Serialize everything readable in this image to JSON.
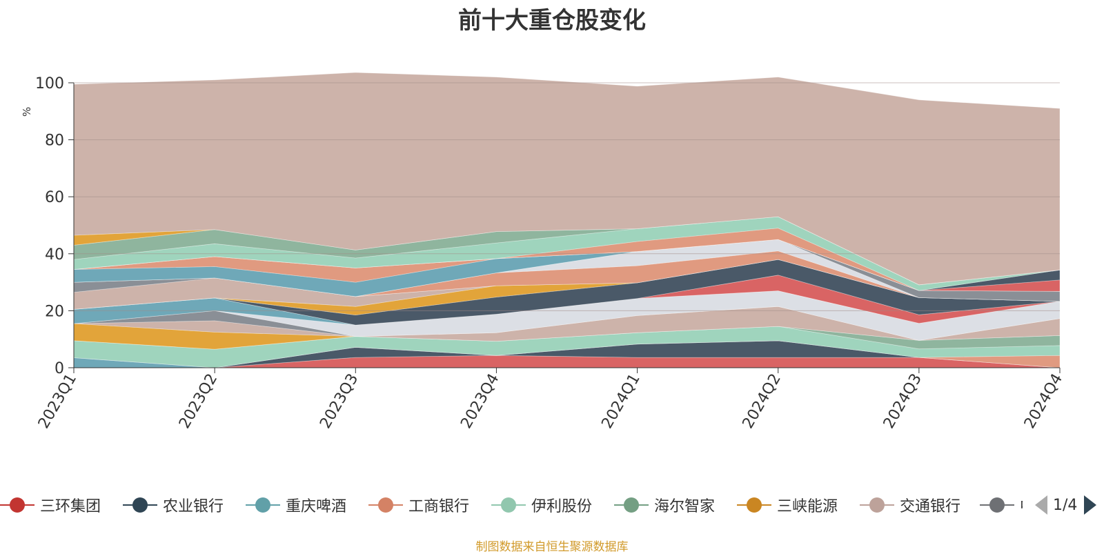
{
  "chart_data": {
    "type": "area",
    "title": "前十大重仓股变化",
    "ylabel": "%",
    "xlabel": "",
    "ylim": [
      0,
      100
    ],
    "yticks": [
      0,
      20,
      40,
      60,
      80,
      100
    ],
    "categories": [
      "2023Q1",
      "2023Q2",
      "2023Q3",
      "2023Q4",
      "2024Q1",
      "2024Q2",
      "2024Q3",
      "2024Q4"
    ],
    "stacked": true,
    "grid": true,
    "series": [
      {
        "name": "三环集团",
        "color": "#d96464",
        "values": [
          0,
          0,
          3.6,
          4.3,
          3.6,
          3.6,
          3.6,
          0
        ]
      },
      {
        "name": "农业银行",
        "color": "#4a5968",
        "values": [
          0,
          0,
          3.6,
          0,
          4.7,
          5.9,
          0,
          0
        ]
      },
      {
        "name": "重庆啤酒",
        "color": "#6fa8b8",
        "values": [
          3.5,
          0,
          0,
          0,
          0,
          0,
          0,
          0
        ]
      },
      {
        "name": "工商银行",
        "color": "#e09a80",
        "values": [
          0,
          0,
          0,
          0,
          0,
          0,
          0,
          4.3
        ]
      },
      {
        "name": "伊利股份",
        "color": "#9fd4bd",
        "values": [
          6,
          6.5,
          3.8,
          5,
          4,
          5,
          3,
          3.5
        ]
      },
      {
        "name": "海尔智家",
        "color": "#8fb59e",
        "values": [
          0,
          0,
          0,
          0,
          0,
          0,
          3,
          3.5
        ]
      },
      {
        "name": "三峡能源",
        "color": "#e2a43a",
        "values": [
          6,
          6,
          0,
          0,
          0,
          0,
          0,
          0
        ]
      },
      {
        "name": "交通银行",
        "color": "#cdb3aa",
        "values": [
          0,
          4,
          0,
          3,
          6,
          7,
          0,
          6
        ]
      },
      {
        "name": "",
        "color": "#8a8f96",
        "values": [
          0,
          3.5,
          0,
          0,
          0,
          0,
          0,
          0
        ]
      },
      {
        "name": "",
        "color": "#dcdfe5",
        "values": [
          0,
          0,
          4,
          6.5,
          6,
          5.5,
          6,
          6
        ]
      },
      {
        "name": "",
        "color": "#6fa8b8",
        "values": [
          5,
          4.5,
          0,
          0,
          0,
          0,
          0,
          0
        ]
      },
      {
        "name": "",
        "color": "#d96464",
        "values": [
          0,
          0,
          0,
          0,
          0,
          5.5,
          3,
          0
        ]
      },
      {
        "name": "",
        "color": "#4a5968",
        "values": [
          0,
          0,
          3.5,
          6,
          5.5,
          5.5,
          6,
          0
        ]
      },
      {
        "name": "",
        "color": "#e2a43a",
        "values": [
          0,
          0,
          3,
          4,
          0,
          0,
          0,
          0
        ]
      },
      {
        "name": "",
        "color": "#cdb3aa",
        "values": [
          6,
          7,
          3.5,
          0,
          0,
          0,
          0,
          0
        ]
      },
      {
        "name": "",
        "color": "#8a8f96",
        "values": [
          3.5,
          0,
          0,
          0,
          0,
          0,
          0,
          0
        ]
      },
      {
        "name": "",
        "color": "#e09a80",
        "values": [
          0,
          0,
          0,
          4.5,
          6,
          3,
          0,
          0
        ]
      },
      {
        "name": "",
        "color": "#dcdfe5",
        "values": [
          0,
          0,
          0,
          0,
          5,
          4,
          0,
          0
        ]
      },
      {
        "name": "",
        "color": "#8a8f96",
        "values": [
          0,
          0,
          0,
          0,
          0,
          0,
          2.5,
          3.5
        ]
      },
      {
        "name": "",
        "color": "#6fa8b8",
        "values": [
          4.5,
          4,
          5,
          5,
          0,
          0,
          0,
          0
        ]
      },
      {
        "name": "",
        "color": "#e09a80",
        "values": [
          0,
          3.5,
          5,
          0,
          0,
          0,
          0,
          0
        ]
      },
      {
        "name": "",
        "color": "#d96464",
        "values": [
          0,
          0,
          0,
          0,
          0,
          0,
          0,
          4
        ]
      },
      {
        "name": "",
        "color": "#4a5968",
        "values": [
          0,
          0,
          0,
          0,
          0,
          0,
          0,
          3.5
        ]
      },
      {
        "name": "",
        "color": "#e09a80",
        "values": [
          0,
          0,
          0,
          0,
          3.5,
          4,
          0,
          0
        ]
      },
      {
        "name": "",
        "color": "#9fd4bd",
        "values": [
          3.5,
          4.5,
          3.5,
          5.5,
          4.5,
          4,
          2,
          0
        ]
      },
      {
        "name": "",
        "color": "#8fb59e",
        "values": [
          5,
          5,
          2.8,
          4,
          0,
          0,
          0,
          0
        ]
      },
      {
        "name": "",
        "color": "#e2a43a",
        "values": [
          3.5,
          0,
          0,
          0,
          0,
          0,
          0,
          0
        ]
      },
      {
        "name": "",
        "color": "#cdb3aa",
        "values": [
          53,
          52.5,
          62.3,
          54.2,
          50,
          49,
          64.9,
          56.7
        ]
      }
    ]
  },
  "legend": {
    "items": [
      {
        "label": "三环集团",
        "color": "#c23531"
      },
      {
        "label": "农业银行",
        "color": "#2f4554"
      },
      {
        "label": "重庆啤酒",
        "color": "#61a0a8"
      },
      {
        "label": "工商银行",
        "color": "#d48265"
      },
      {
        "label": "伊利股份",
        "color": "#91c7ae"
      },
      {
        "label": "海尔智家",
        "color": "#749f83"
      },
      {
        "label": "三峡能源",
        "color": "#ca8622"
      },
      {
        "label": "交通银行",
        "color": "#bda29a"
      },
      {
        "label": "中",
        "color": "#6e7074"
      }
    ],
    "page": "1/4"
  },
  "source": "制图数据来自恒生聚源数据库"
}
